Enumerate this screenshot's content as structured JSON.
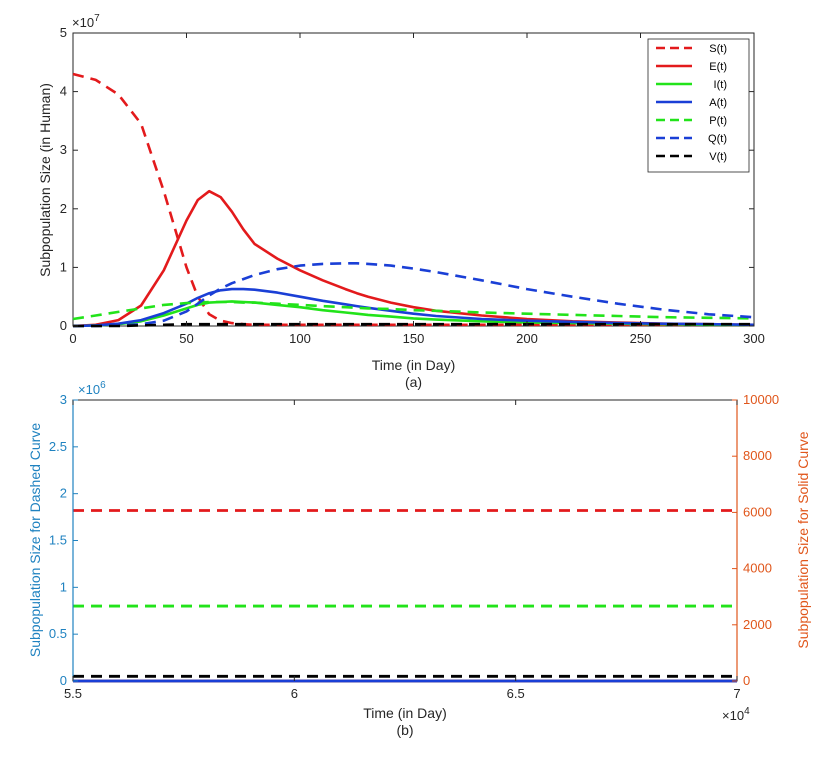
{
  "colors": {
    "red": "#e31a1c",
    "green": "#22e31a",
    "blue": "#1a3fd6",
    "black": "#000000",
    "left_axis_b": "#1f82c0",
    "right_axis_b": "#e0561b"
  },
  "chart_data": [
    {
      "type": "line",
      "xlabel": "Time (in Day)",
      "ylabel": "Subpopulation Size (in Human)",
      "caption": "(a)",
      "xlim": [
        0,
        300
      ],
      "ylim": [
        0,
        5
      ],
      "y_exponent_label": "×10",
      "y_exponent_power": "7",
      "xticks": [
        0,
        50,
        100,
        150,
        200,
        250,
        300
      ],
      "yticks": [
        0,
        1,
        2,
        3,
        4,
        5
      ],
      "grid": false,
      "legend_position": "top-right",
      "x": [
        0,
        10,
        20,
        30,
        40,
        50,
        55,
        60,
        65,
        70,
        75,
        80,
        90,
        100,
        110,
        120,
        125,
        130,
        140,
        150,
        160,
        180,
        200,
        220,
        240,
        260,
        280,
        300
      ],
      "series": [
        {
          "name": "S(t)",
          "style": "dashed",
          "color": "red",
          "values": [
            4.3,
            4.2,
            3.95,
            3.45,
            2.3,
            1.0,
            0.5,
            0.2,
            0.09,
            0.05,
            0.03,
            0.02,
            0.02,
            0.02,
            0.02,
            0.02,
            0.02,
            0.02,
            0.02,
            0.02,
            0.02,
            0.02,
            0.02,
            0.02,
            0.02,
            0.02,
            0.02,
            0.02
          ]
        },
        {
          "name": "E(t)",
          "style": "solid",
          "color": "red",
          "values": [
            0.0,
            0.02,
            0.1,
            0.35,
            0.95,
            1.8,
            2.15,
            2.3,
            2.2,
            1.95,
            1.65,
            1.4,
            1.15,
            0.95,
            0.78,
            0.63,
            0.56,
            0.5,
            0.4,
            0.32,
            0.26,
            0.18,
            0.12,
            0.08,
            0.06,
            0.04,
            0.03,
            0.02
          ]
        },
        {
          "name": "I(t)",
          "style": "solid",
          "color": "green",
          "values": [
            0.0,
            0.01,
            0.03,
            0.08,
            0.18,
            0.3,
            0.36,
            0.4,
            0.41,
            0.42,
            0.41,
            0.4,
            0.36,
            0.32,
            0.27,
            0.23,
            0.21,
            0.19,
            0.16,
            0.13,
            0.11,
            0.08,
            0.06,
            0.05,
            0.04,
            0.03,
            0.02,
            0.02
          ]
        },
        {
          "name": "A(t)",
          "style": "solid",
          "color": "blue",
          "values": [
            0.0,
            0.01,
            0.04,
            0.1,
            0.22,
            0.38,
            0.48,
            0.56,
            0.61,
            0.63,
            0.63,
            0.62,
            0.57,
            0.5,
            0.43,
            0.37,
            0.34,
            0.31,
            0.26,
            0.21,
            0.17,
            0.12,
            0.09,
            0.07,
            0.05,
            0.04,
            0.03,
            0.02
          ]
        },
        {
          "name": "P(t)",
          "style": "dashed",
          "color": "green",
          "values": [
            0.12,
            0.18,
            0.24,
            0.3,
            0.36,
            0.39,
            0.4,
            0.41,
            0.41,
            0.41,
            0.4,
            0.4,
            0.38,
            0.36,
            0.34,
            0.32,
            0.31,
            0.3,
            0.29,
            0.27,
            0.26,
            0.23,
            0.21,
            0.19,
            0.17,
            0.15,
            0.14,
            0.13
          ]
        },
        {
          "name": "Q(t)",
          "style": "dashed",
          "color": "blue",
          "values": [
            0.0,
            0.0,
            0.01,
            0.03,
            0.09,
            0.25,
            0.38,
            0.52,
            0.64,
            0.73,
            0.8,
            0.87,
            0.97,
            1.03,
            1.06,
            1.07,
            1.07,
            1.06,
            1.03,
            0.98,
            0.92,
            0.78,
            0.63,
            0.5,
            0.38,
            0.28,
            0.2,
            0.15
          ]
        },
        {
          "name": "V(t)",
          "style": "dashed",
          "color": "black",
          "values": [
            0.0,
            0.0,
            0.0,
            0.01,
            0.02,
            0.03,
            0.03,
            0.03,
            0.03,
            0.03,
            0.03,
            0.03,
            0.03,
            0.03,
            0.03,
            0.03,
            0.03,
            0.03,
            0.03,
            0.03,
            0.03,
            0.03,
            0.03,
            0.03,
            0.03,
            0.03,
            0.03,
            0.03
          ]
        }
      ]
    },
    {
      "type": "line",
      "xlabel": "Time (in Day)",
      "ylabel": "Subpopulation Size for Dashed Curve",
      "ylabel_right": "Subpopulation Size for Solid Curve",
      "caption": "(b)",
      "xlim": [
        5.5,
        7
      ],
      "ylim": [
        0,
        3
      ],
      "ylim_right": [
        0,
        10000
      ],
      "x_exponent_label": "×10",
      "x_exponent_power": "4",
      "y_exponent_label": "×10",
      "y_exponent_power": "6",
      "xticks": [
        5.5,
        6,
        6.5,
        7
      ],
      "yticks": [
        0,
        0.5,
        1,
        1.5,
        2,
        2.5,
        3
      ],
      "yticks_right": [
        0,
        2000,
        4000,
        6000,
        8000,
        10000
      ],
      "grid": false,
      "series": [
        {
          "style": "dashed",
          "color": "red",
          "axis": "left",
          "values": [
            1.82,
            1.82
          ]
        },
        {
          "style": "dashed",
          "color": "green",
          "axis": "left",
          "values": [
            0.8,
            0.8
          ]
        },
        {
          "style": "dashed",
          "color": "black",
          "axis": "left",
          "values": [
            0.05,
            0.05
          ]
        },
        {
          "style": "dashed",
          "color": "blue",
          "axis": "left",
          "values": [
            0.0,
            0.0
          ]
        },
        {
          "style": "solid",
          "color": "green",
          "axis": "right",
          "values": [
            0,
            0
          ]
        },
        {
          "style": "solid",
          "color": "red",
          "axis": "right",
          "values": [
            0,
            0
          ]
        },
        {
          "style": "solid",
          "color": "blue",
          "axis": "right",
          "values": [
            0,
            0
          ]
        }
      ]
    }
  ]
}
